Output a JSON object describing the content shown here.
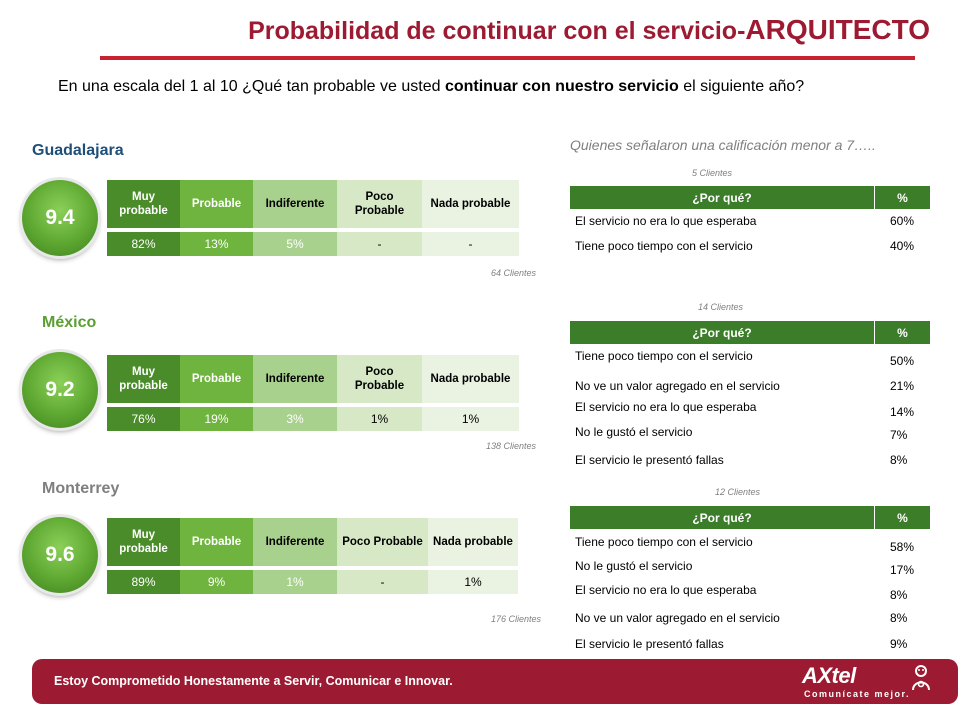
{
  "title": {
    "main": "Probabilidad de continuar con el servicio-",
    "accent": "ARQUITECTO"
  },
  "question": {
    "part1": "En una escala del 1 al 10 ¿Qué tan probable ve usted ",
    "bold": "continuar con nuestro servicio",
    "part2": " el siguiente año?"
  },
  "subheading": "Quienes señalaron una calificación menor a 7…..",
  "scale_headers": [
    "Muy probable",
    "Probable",
    "Indiferente",
    "Poco Probable",
    "Nada probable"
  ],
  "why_headers": {
    "reason": "¿Por qué?",
    "pct": "%"
  },
  "cities": [
    {
      "name": "Guadalajara",
      "score": "9.4",
      "values": [
        "82%",
        "13%",
        "5%",
        "-",
        "-"
      ],
      "clients": "64 Clientes",
      "why_clients": "5 Clientes",
      "reasons": [
        {
          "label": "El servicio no era lo que esperaba",
          "pct": "60%"
        },
        {
          "label": "Tiene poco tiempo con el servicio",
          "pct": "40%"
        }
      ]
    },
    {
      "name": "México",
      "score": "9.2",
      "values": [
        "76%",
        "19%",
        "3%",
        "1%",
        "1%"
      ],
      "clients": "138 Clientes",
      "why_clients": "14 Clientes",
      "reasons": [
        {
          "label": "Tiene poco tiempo con el servicio",
          "pct": "50%"
        },
        {
          "label": "No ve un valor agregado en el servicio",
          "pct": "21%"
        },
        {
          "label": "El servicio no era lo que esperaba",
          "pct": "14%"
        },
        {
          "label": "No le gustó el servicio",
          "pct": "7%"
        },
        {
          "label": "El servicio le presentó fallas",
          "pct": "8%"
        }
      ]
    },
    {
      "name": "Monterrey",
      "score": "9.6",
      "values": [
        "89%",
        "9%",
        "1%",
        "-",
        "1%"
      ],
      "clients": "176 Clientes",
      "why_clients": "12 Clientes",
      "reasons": [
        {
          "label": "Tiene poco tiempo con el servicio",
          "pct": "58%"
        },
        {
          "label": "No le gustó el servicio",
          "pct": "17%"
        },
        {
          "label": "El servicio no era lo que esperaba",
          "pct": "8%"
        },
        {
          "label": "No ve un valor agregado en el servicio",
          "pct": "8%"
        },
        {
          "label": "El servicio le presentó fallas",
          "pct": "9%"
        }
      ]
    }
  ],
  "footer": {
    "slogan": "Estoy Comprometido Honestamente a Servir, Comunicar e Innovar.",
    "logo_text": "AXtel",
    "logo_tagline": "Comunícate mejor."
  }
}
